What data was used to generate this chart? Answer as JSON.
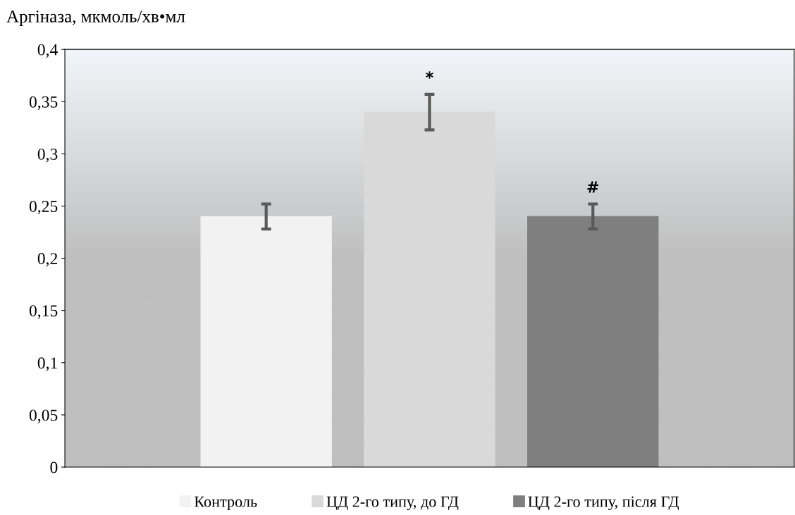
{
  "chart_data": {
    "type": "bar",
    "ylabel": "Аргіназа, мкмоль/хв•мл",
    "categories": [
      null
    ],
    "series": [
      {
        "name": "Контроль",
        "color": "#f2f2f2",
        "values": [
          0.24
        ],
        "errors": [
          0.012
        ]
      },
      {
        "name": "ЦД 2-го типу, до ГД",
        "color": "#d9d9d9",
        "values": [
          0.34
        ],
        "errors": [
          0.017
        ]
      },
      {
        "name": "ЦД 2-го типу, після ГД",
        "color": "#7f7f7f",
        "values": [
          0.24
        ],
        "errors": [
          0.012
        ]
      }
    ],
    "annotations": [
      "*",
      "#"
    ],
    "ylim": [
      0,
      0.4
    ],
    "yticks": [
      0,
      {
        "value": 0.05,
        "label": "0,05"
      },
      {
        "value": 0.1,
        "label": "0,1"
      },
      {
        "value": 0.15,
        "label": "0,15"
      },
      {
        "value": 0.2,
        "label": "0,2"
      },
      {
        "value": 0.25,
        "label": "0,25"
      },
      {
        "value": 0.3,
        "label": "0,3"
      },
      {
        "value": 0.35,
        "label": "0,35"
      },
      {
        "value": 0.4,
        "label": "0,4"
      }
    ],
    "tick_labels": "y",
    "grid": false,
    "legend": "bottom"
  }
}
